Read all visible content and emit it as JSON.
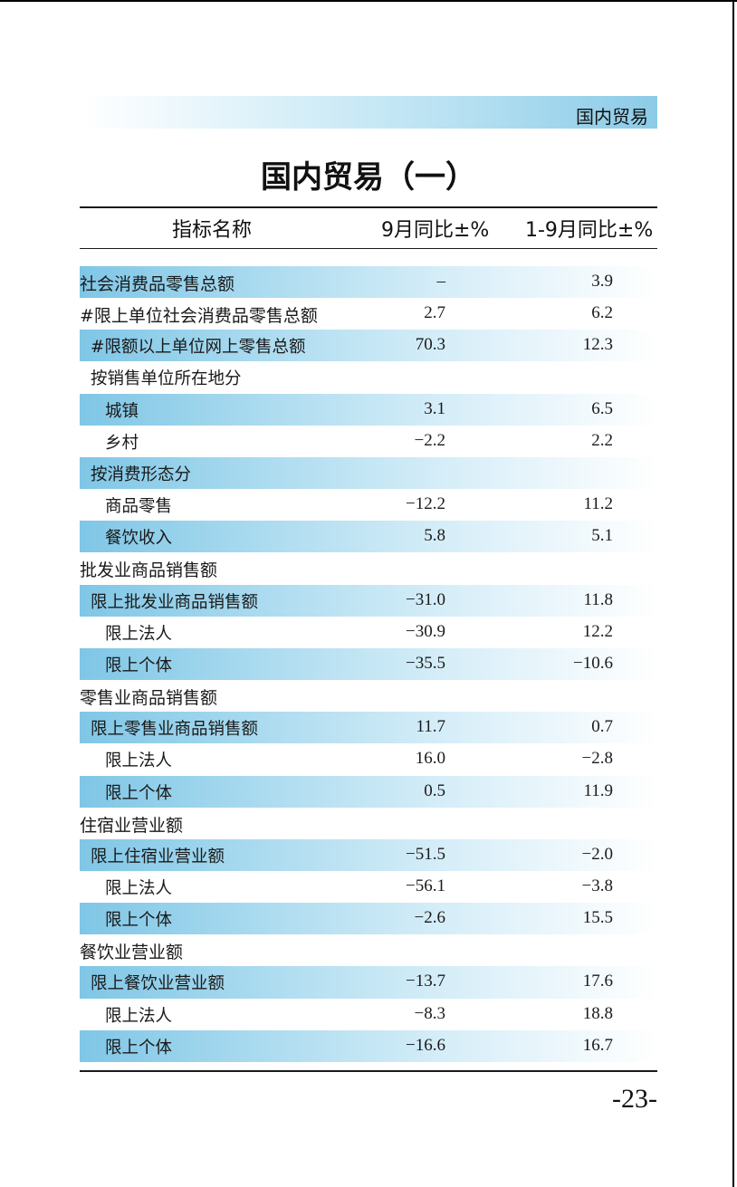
{
  "header": {
    "section_label": "国内贸易",
    "title": "国内贸易（一）"
  },
  "table": {
    "columns": [
      "指标名称",
      "9月同比±%",
      "1-9月同比±%"
    ],
    "rows": [
      {
        "label": "社会消费品零售总额",
        "m9": "–",
        "ytd": "3.9",
        "level": 0,
        "shaded": true
      },
      {
        "label": "#限上单位社会消费品零售总额",
        "m9": "2.7",
        "ytd": "6.2",
        "level": 0,
        "shaded": false
      },
      {
        "label": "#限额以上单位网上零售总额",
        "m9": "70.3",
        "ytd": "12.3",
        "level": 1,
        "shaded": true
      },
      {
        "label": "按销售单位所在地分",
        "m9": "",
        "ytd": "",
        "level": 1,
        "shaded": false
      },
      {
        "label": "城镇",
        "m9": "3.1",
        "ytd": "6.5",
        "level": 2,
        "shaded": true
      },
      {
        "label": "乡村",
        "m9": "−2.2",
        "ytd": "2.2",
        "level": 2,
        "shaded": false
      },
      {
        "label": "按消费形态分",
        "m9": "",
        "ytd": "",
        "level": 1,
        "shaded": true
      },
      {
        "label": "商品零售",
        "m9": "−12.2",
        "ytd": "11.2",
        "level": 2,
        "shaded": false
      },
      {
        "label": "餐饮收入",
        "m9": "5.8",
        "ytd": "5.1",
        "level": 2,
        "shaded": true
      },
      {
        "label": "批发业商品销售额",
        "m9": "",
        "ytd": "",
        "level": 0,
        "shaded": false
      },
      {
        "label": "限上批发业商品销售额",
        "m9": "−31.0",
        "ytd": "11.8",
        "level": 1,
        "shaded": true
      },
      {
        "label": "限上法人",
        "m9": "−30.9",
        "ytd": "12.2",
        "level": 2,
        "shaded": false
      },
      {
        "label": "限上个体",
        "m9": "−35.5",
        "ytd": "−10.6",
        "level": 2,
        "shaded": true
      },
      {
        "label": "零售业商品销售额",
        "m9": "",
        "ytd": "",
        "level": 0,
        "shaded": false
      },
      {
        "label": "限上零售业商品销售额",
        "m9": "11.7",
        "ytd": "0.7",
        "level": 1,
        "shaded": true
      },
      {
        "label": "限上法人",
        "m9": "16.0",
        "ytd": "−2.8",
        "level": 2,
        "shaded": false
      },
      {
        "label": "限上个体",
        "m9": "0.5",
        "ytd": "11.9",
        "level": 2,
        "shaded": true
      },
      {
        "label": "住宿业营业额",
        "m9": "",
        "ytd": "",
        "level": 0,
        "shaded": false
      },
      {
        "label": "限上住宿业营业额",
        "m9": "−51.5",
        "ytd": "−2.0",
        "level": 1,
        "shaded": true
      },
      {
        "label": "限上法人",
        "m9": "−56.1",
        "ytd": "−3.8",
        "level": 2,
        "shaded": false
      },
      {
        "label": "限上个体",
        "m9": "−2.6",
        "ytd": "15.5",
        "level": 2,
        "shaded": true
      },
      {
        "label": "餐饮业营业额",
        "m9": "",
        "ytd": "",
        "level": 0,
        "shaded": false
      },
      {
        "label": "限上餐饮业营业额",
        "m9": "−13.7",
        "ytd": "17.6",
        "level": 1,
        "shaded": true
      },
      {
        "label": "限上法人",
        "m9": "−8.3",
        "ytd": "18.8",
        "level": 2,
        "shaded": false
      },
      {
        "label": "限上个体",
        "m9": "−16.6",
        "ytd": "16.7",
        "level": 2,
        "shaded": true
      }
    ]
  },
  "footer": {
    "page_number": "-23-"
  }
}
